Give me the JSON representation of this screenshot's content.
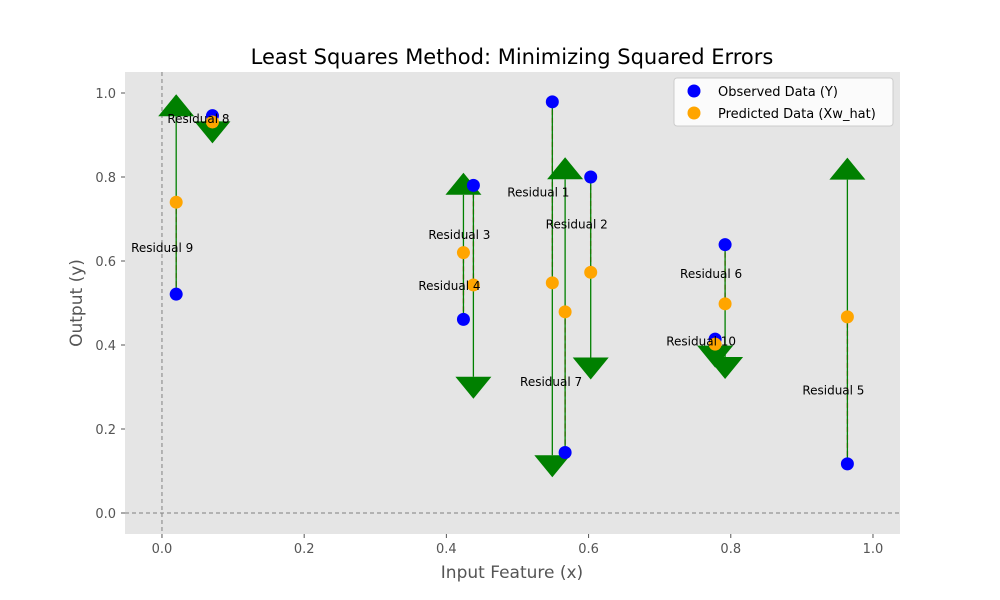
{
  "chart_data": {
    "type": "scatter",
    "title": "Least Squares Method: Minimizing Squared Errors",
    "xlabel": "Input Feature (x)",
    "ylabel": "Output (y)",
    "xlim": [
      -0.052,
      1.038
    ],
    "ylim": [
      -0.05,
      1.05
    ],
    "xticks": [
      0.0,
      0.2,
      0.4,
      0.6,
      0.8,
      1.0
    ],
    "yticks": [
      0.0,
      0.2,
      0.4,
      0.6,
      0.8,
      1.0
    ],
    "xtick_labels": [
      "0.0",
      "0.2",
      "0.4",
      "0.6",
      "0.8",
      "1.0"
    ],
    "ytick_labels": [
      "0.0",
      "0.2",
      "0.4",
      "0.6",
      "0.8",
      "1.0"
    ],
    "grid": false,
    "legend_position": "top-right",
    "reference_lines": {
      "x": 0,
      "y": 0
    },
    "colors": {
      "plot_bg": "#e5e5e5",
      "observed": "#0000ff",
      "predicted": "#ffa500",
      "residual": "#ff5555",
      "arrow": "#008000",
      "ref_line": "#808080"
    },
    "series": [
      {
        "name": "Observed Data (Y)",
        "role": "observed"
      },
      {
        "name": "Predicted Data (Xw_hat)",
        "role": "predicted"
      }
    ],
    "points": [
      {
        "label": "Residual 1",
        "x": 0.549,
        "y_obs": 0.979,
        "y_pred": 0.548,
        "arrow_tip": 0.085
      },
      {
        "label": "Residual 2",
        "x": 0.603,
        "y_obs": 0.8,
        "y_pred": 0.573,
        "arrow_tip": 0.318
      },
      {
        "label": "Residual 3",
        "x": 0.438,
        "y_obs": 0.78,
        "y_pred": 0.543,
        "arrow_tip": 0.272
      },
      {
        "label": "Residual 4",
        "x": 0.424,
        "y_obs": 0.461,
        "y_pred": 0.62,
        "arrow_tip": 0.81
      },
      {
        "label": "Residual 5",
        "x": 0.964,
        "y_obs": 0.117,
        "y_pred": 0.467,
        "arrow_tip": 0.846
      },
      {
        "label": "Residual 6",
        "x": 0.792,
        "y_obs": 0.639,
        "y_pred": 0.498,
        "arrow_tip": 0.319
      },
      {
        "label": "Residual 7",
        "x": 0.567,
        "y_obs": 0.144,
        "y_pred": 0.479,
        "arrow_tip": 0.847
      },
      {
        "label": "Residual 8",
        "x": 0.071,
        "y_obs": 0.946,
        "y_pred": 0.931,
        "arrow_tip": 0.88
      },
      {
        "label": "Residual 9",
        "x": 0.02,
        "y_obs": 0.521,
        "y_pred": 0.74,
        "arrow_tip": 0.997
      },
      {
        "label": "Residual 10",
        "x": 0.778,
        "y_obs": 0.414,
        "y_pred": 0.402,
        "arrow_tip": 0.346
      }
    ]
  }
}
